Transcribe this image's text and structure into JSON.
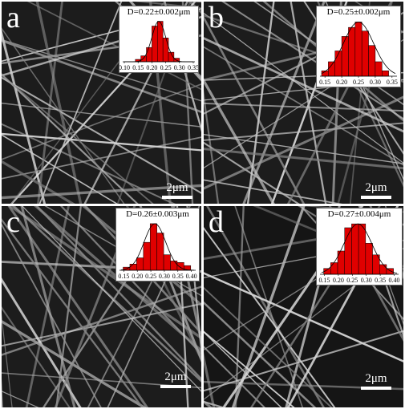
{
  "panels": [
    {
      "letter": "a",
      "scale_bar": "2μm",
      "diameter": "D=0.22±0.002μm",
      "histogram": {
        "ticks": [
          "0.10",
          "0.15",
          "0.20",
          "0.25",
          "0.30",
          "0.35"
        ],
        "xlim": [
          0.1,
          0.35
        ],
        "bin_width": 0.02,
        "bins": [
          0.15,
          0.17,
          0.19,
          0.21,
          0.23,
          0.25,
          0.27,
          0.29
        ],
        "counts": [
          2,
          5,
          12,
          30,
          34,
          20,
          8,
          3
        ],
        "fit_mean": 0.225,
        "fit_sd": 0.025,
        "bar_color": "#e00000"
      }
    },
    {
      "letter": "b",
      "scale_bar": "2μm",
      "diameter": "D=0.25±0.002μm",
      "histogram": {
        "ticks": [
          "0.15",
          "0.20",
          "0.25",
          "0.30",
          "0.35"
        ],
        "xlim": [
          0.14,
          0.36
        ],
        "bin_width": 0.02,
        "bins": [
          0.15,
          0.17,
          0.19,
          0.21,
          0.23,
          0.25,
          0.27,
          0.29,
          0.31,
          0.33
        ],
        "counts": [
          3,
          8,
          14,
          22,
          27,
          30,
          25,
          17,
          8,
          3
        ],
        "fit_mean": 0.25,
        "fit_sd": 0.045,
        "bar_color": "#e00000"
      }
    },
    {
      "letter": "c",
      "scale_bar": "2μm",
      "diameter": "D=0.26±0.003μm",
      "histogram": {
        "ticks": [
          "0.15",
          "0.20",
          "0.25",
          "0.30",
          "0.35",
          "0.40"
        ],
        "xlim": [
          0.14,
          0.41
        ],
        "bin_width": 0.025,
        "bins": [
          0.16,
          0.185,
          0.21,
          0.235,
          0.26,
          0.285,
          0.31,
          0.335,
          0.36,
          0.385
        ],
        "counts": [
          2,
          4,
          8,
          18,
          30,
          24,
          10,
          6,
          5,
          3
        ],
        "fit_mean": 0.265,
        "fit_sd": 0.04,
        "bar_color": "#e00000"
      }
    },
    {
      "letter": "d",
      "scale_bar": "2μm",
      "diameter": "D=0.27±0.004μm",
      "histogram": {
        "ticks": [
          "0.15",
          "0.20",
          "0.25",
          "0.30",
          "0.35",
          "0.40"
        ],
        "xlim": [
          0.14,
          0.41
        ],
        "bin_width": 0.025,
        "bins": [
          0.16,
          0.185,
          0.21,
          0.235,
          0.26,
          0.285,
          0.31,
          0.335,
          0.36,
          0.385
        ],
        "counts": [
          3,
          6,
          12,
          24,
          26,
          26,
          16,
          10,
          5,
          3
        ],
        "fit_mean": 0.27,
        "fit_sd": 0.05,
        "bar_color": "#e00000"
      }
    }
  ]
}
